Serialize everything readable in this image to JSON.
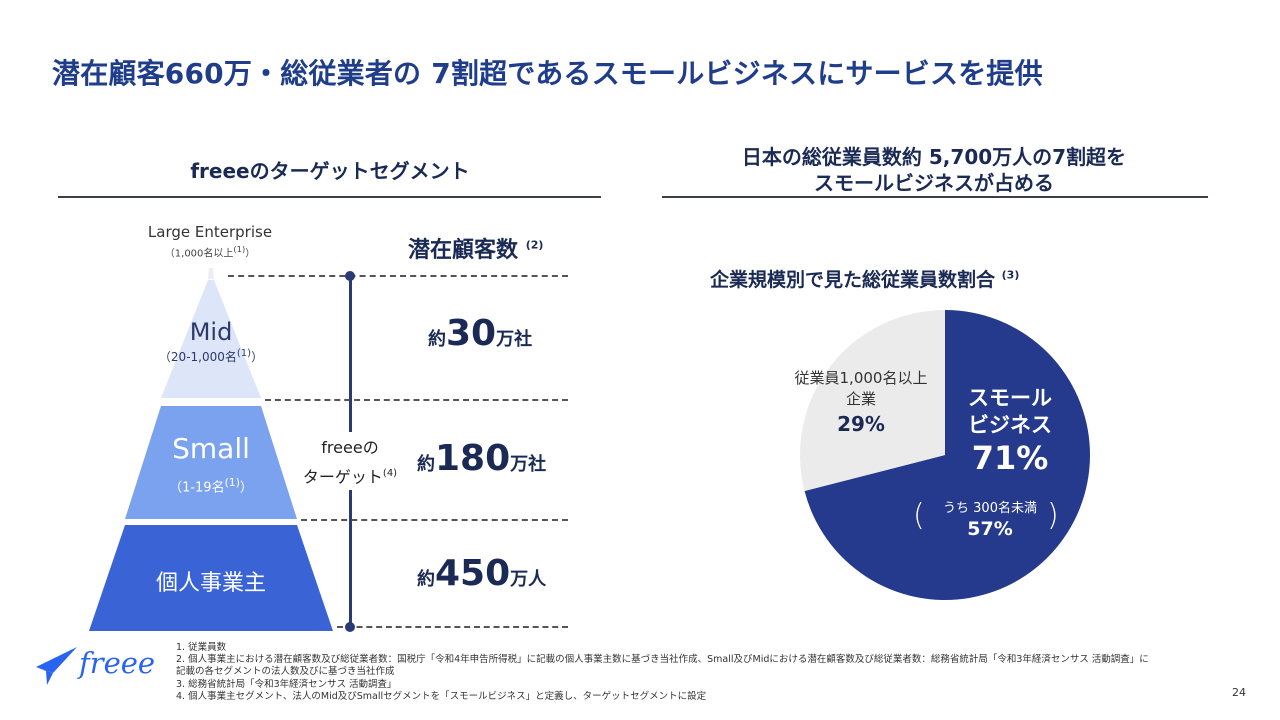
{
  "title": "潜在顧客660万・総従業者の 7割超であるスモールビジネスにサービスを提供",
  "left": {
    "heading": "freeeのターゲットセグメント",
    "large_enterprise": "Large Enterprise",
    "large_enterprise_sub": "（1,000名以上",
    "large_enterprise_note": "(1)",
    "large_enterprise_close": "）",
    "tiers": [
      {
        "name": "Mid",
        "sub": "（20-1,000名",
        "note": "(1)",
        "close": "）"
      },
      {
        "name": "Small",
        "sub": "（1-19名",
        "note": "(1)",
        "close": "）"
      },
      {
        "name": "個人事業主"
      }
    ],
    "colors": {
      "tier1": "#dde6f8",
      "tier2": "#7ba2ee",
      "tier3": "#3a63d6"
    },
    "potential_heading": "潜在顧客数",
    "potential_note": "(2)",
    "counts": [
      {
        "prefix": "約",
        "num": "30",
        "suffix": "万社"
      },
      {
        "prefix": "約",
        "num": "180",
        "suffix": "万社"
      },
      {
        "prefix": "約",
        "num": "450",
        "suffix": "万人"
      }
    ],
    "target_line1": "freeeの",
    "target_line2": "ターゲット",
    "target_note": "(4)"
  },
  "right": {
    "heading_line1": "日本の総従業員数約 5,700万人の7割超を",
    "heading_line2": "スモールビジネスが占める",
    "pie_title": "企業規模別で見た総従業員数割合",
    "pie_note": "(3)",
    "slices": [
      {
        "label_line1": "スモール",
        "label_line2": "ビジネス",
        "value_text": "71%",
        "value": 71,
        "color": "#253a8c"
      },
      {
        "label_line1": "従業員1,000名以上",
        "label_line2": "企業",
        "value_text": "29%",
        "value": 29,
        "color": "#ebebeb"
      }
    ],
    "inner_label": "うち 300名未満",
    "inner_value": "57%"
  },
  "footnotes": [
    "1.  従業員数",
    "2.  個人事業主における潜在顧客数及び総従業者数：国税庁「令和4年申告所得税」に記載の個人事業主数に基づき当社作成、Small及びMidにおける潜在顧客数及び総従業者数：総務省統計局「令和3年経済センサス 活動調査」に",
    "      記載の各セグメントの法人数及びに基づき当社作成",
    "3.  総務省統計局「令和3年経済センサス 活動調査」",
    "4.  個人事業主セグメント、法人のMid及びSmallセグメントを「スモールビジネス」と定義し、ターゲットセグメントに設定"
  ],
  "logo_text": "freee",
  "page_number": "24"
}
